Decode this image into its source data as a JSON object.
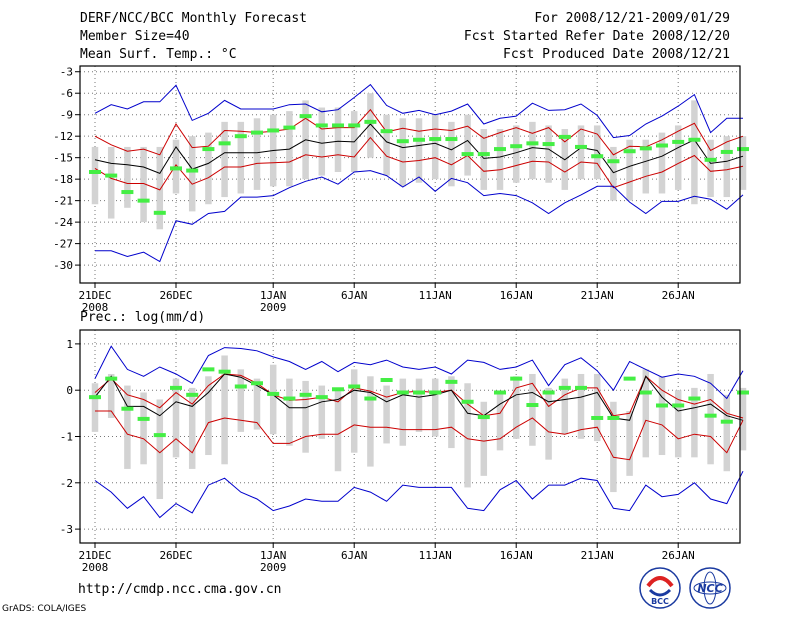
{
  "header": {
    "title": "DERF/NCC/BCC Monthly Forecast",
    "member_size": "Member Size=40",
    "variable1": "Mean Surf. Temp.: °C",
    "forecast_period": "For 2008/12/21-2009/01/29",
    "started_refer": "Fcst Started Refer Date 2008/12/20",
    "produced": "Fcst Produced Date 2008/12/21"
  },
  "footer": {
    "url": "http://cmdp.ncc.cma.gov.cn",
    "grads": "GrADS: COLA/IGES",
    "logo_bcc": "BCC",
    "logo_ncc": "NCC"
  },
  "colors": {
    "max_min": "#0000cc",
    "spread": "#cc0000",
    "mean": "#000000",
    "box": "#d3d3d3",
    "member": "#44ee44"
  },
  "chart_data": [
    {
      "type": "line",
      "title": "Mean Surf. Temp.: °C",
      "ylim": [
        -32.5,
        -2.2
      ],
      "yticks": [
        -3,
        -6,
        -9,
        -12,
        -15,
        -18,
        -21,
        -24,
        -27,
        -30
      ],
      "ytick_labels": [
        "-3",
        "-6",
        "-9",
        "-12",
        "-15",
        "-18",
        "-21",
        "-24",
        "-27",
        "-30"
      ],
      "x_tick_days": [
        1,
        6,
        12,
        17,
        22,
        27,
        32,
        37
      ],
      "x_tick_labels": [
        "21DEC",
        "26DEC",
        "1JAN",
        "6JAN",
        "11JAN",
        "16JAN",
        "21JAN",
        "26JAN"
      ],
      "x_year_labels": [
        {
          "day": 1,
          "label": "2008"
        },
        {
          "day": 12,
          "label": "2009"
        }
      ],
      "series": [
        {
          "name": "max",
          "values": [
            -8.8,
            -7.6,
            -8.2,
            -7.2,
            -7.2,
            -4.9,
            -9.8,
            -8.8,
            -7.0,
            -8.2,
            -8.2,
            -8.2,
            -7.6,
            -7.5,
            -8.6,
            -8.3,
            -6.6,
            -4.8,
            -7.7,
            -8.8,
            -8.4,
            -9.0,
            -8.5,
            -7.5,
            -10.3,
            -9.5,
            -9.2,
            -7.4,
            -8.4,
            -8.3,
            -7.5,
            -9.1,
            -12.2,
            -11.9,
            -10.3,
            -9.2,
            -7.8,
            -6.2,
            -11.5,
            -9.5,
            -9.5
          ]
        },
        {
          "name": "upper",
          "values": [
            -12.0,
            -13.2,
            -14.1,
            -13.8,
            -14.6,
            -10.3,
            -13.6,
            -13.4,
            -11.2,
            -11.3,
            -11.5,
            -11.3,
            -11.0,
            -9.5,
            -11.0,
            -10.8,
            -10.8,
            -8.3,
            -11.4,
            -10.9,
            -11.3,
            -11.0,
            -11.2,
            -10.6,
            -12.3,
            -11.5,
            -10.8,
            -11.6,
            -10.8,
            -12.8,
            -11.0,
            -11.7,
            -14.6,
            -13.4,
            -13.5,
            -12.5,
            -11.3,
            -10.2,
            -14.0,
            -12.8,
            -12.0
          ]
        },
        {
          "name": "mean",
          "values": [
            -15.3,
            -15.8,
            -16.0,
            -16.3,
            -17.2,
            -13.5,
            -16.6,
            -15.8,
            -14.3,
            -14.3,
            -14.3,
            -14.0,
            -13.8,
            -12.5,
            -13.0,
            -12.7,
            -12.8,
            -10.3,
            -12.8,
            -13.6,
            -13.3,
            -13.0,
            -13.9,
            -12.6,
            -15.1,
            -14.9,
            -14.3,
            -13.6,
            -13.8,
            -15.3,
            -13.6,
            -14.0,
            -17.1,
            -16.2,
            -15.5,
            -14.8,
            -13.6,
            -12.5,
            -15.8,
            -15.5,
            -14.8
          ]
        },
        {
          "name": "lower",
          "values": [
            -16.5,
            -17.9,
            -18.6,
            -18.6,
            -19.5,
            -16.0,
            -18.7,
            -17.8,
            -16.3,
            -16.3,
            -15.8,
            -15.7,
            -15.6,
            -14.6,
            -14.9,
            -14.6,
            -14.9,
            -12.2,
            -14.8,
            -15.6,
            -15.4,
            -15.0,
            -16.0,
            -14.7,
            -16.9,
            -16.7,
            -16.1,
            -15.5,
            -15.6,
            -17.0,
            -15.6,
            -15.8,
            -19.2,
            -18.4,
            -17.6,
            -17.0,
            -15.8,
            -14.7,
            -16.9,
            -16.7,
            -16.2
          ]
        },
        {
          "name": "min",
          "values": [
            -28.0,
            -28.0,
            -28.8,
            -28.2,
            -29.5,
            -23.8,
            -24.3,
            -22.8,
            -22.5,
            -20.5,
            -20.5,
            -20.3,
            -19.2,
            -18.3,
            -17.7,
            -18.7,
            -17.0,
            -16.8,
            -17.5,
            -19.1,
            -17.7,
            -19.7,
            -17.9,
            -18.5,
            -20.3,
            -20.0,
            -20.3,
            -21.3,
            -22.8,
            -21.3,
            -20.2,
            -19.0,
            -19.0,
            -21.2,
            -22.8,
            -21.1,
            -21.1,
            -20.4,
            -20.8,
            -22.2,
            -20.2
          ]
        }
      ],
      "boxes": {
        "low": [
          -21.5,
          -23.5,
          -22.0,
          -24.0,
          -25.0,
          -20.0,
          -22.5,
          -21.5,
          -20.5,
          -20.0,
          -19.5,
          -19.0,
          -19.0,
          -18.0,
          -17.5,
          -17.0,
          -17.0,
          -15.0,
          -17.5,
          -19.0,
          -18.5,
          -18.0,
          -19.0,
          -17.5,
          -19.5,
          -19.5,
          -18.5,
          -18.0,
          -18.5,
          -19.5,
          -18.0,
          -18.0,
          -21.0,
          -21.0,
          -20.0,
          -20.0,
          -19.5,
          -21.5,
          -20.5,
          -20.5,
          -19.5
        ],
        "high": [
          -13.5,
          -13.5,
          -13.5,
          -13.5,
          -13.5,
          -12.5,
          -12.0,
          -11.5,
          -10.0,
          -10.0,
          -9.5,
          -9.0,
          -8.5,
          -7.0,
          -8.0,
          -8.0,
          -8.5,
          -6.0,
          -9.0,
          -9.5,
          -9.5,
          -9.0,
          -10.0,
          -9.0,
          -11.0,
          -11.0,
          -10.5,
          -10.0,
          -10.5,
          -11.0,
          -10.5,
          -10.5,
          -13.5,
          -12.5,
          -12.5,
          -11.5,
          -10.5,
          -7.0,
          -12.5,
          -12.0,
          -12.0
        ]
      },
      "dashes": [
        -17.0,
        -17.5,
        -19.8,
        -21.0,
        -22.7,
        -16.5,
        -16.8,
        -13.8,
        -13.0,
        -12.0,
        -11.5,
        -11.2,
        -10.8,
        -9.2,
        -10.5,
        -10.5,
        -10.5,
        -10.0,
        -11.3,
        -12.7,
        -12.5,
        -12.4,
        -12.4,
        -14.5,
        -14.5,
        -13.8,
        -13.4,
        -13.0,
        -13.1,
        -12.1,
        -13.5,
        -14.8,
        -15.5,
        -14.1,
        -13.7,
        -13.3,
        -12.8,
        -12.5,
        -15.3,
        -14.2,
        -13.8
      ]
    },
    {
      "type": "line",
      "title": "Prec.: log(mm/d)",
      "ylim": [
        -3.3,
        1.3
      ],
      "yticks": [
        1,
        0,
        -1,
        -2,
        -3
      ],
      "ytick_labels": [
        "1",
        "0",
        "-1",
        "-2",
        "-3"
      ],
      "x_tick_days": [
        1,
        6,
        12,
        17,
        22,
        27,
        32,
        37
      ],
      "x_tick_labels": [
        "21DEC",
        "26DEC",
        "1JAN",
        "6JAN",
        "11JAN",
        "16JAN",
        "21JAN",
        "26JAN"
      ],
      "x_year_labels": [
        {
          "day": 1,
          "label": "2008"
        },
        {
          "day": 12,
          "label": "2009"
        }
      ],
      "series": [
        {
          "name": "max",
          "values": [
            0.25,
            0.95,
            0.45,
            0.3,
            0.5,
            0.35,
            0.15,
            0.75,
            0.92,
            0.9,
            0.85,
            0.72,
            0.62,
            0.45,
            0.62,
            0.4,
            0.6,
            0.55,
            0.65,
            0.5,
            0.45,
            0.5,
            0.35,
            0.65,
            0.6,
            0.45,
            0.5,
            0.65,
            0.1,
            0.55,
            0.7,
            0.42,
            0.0,
            0.62,
            0.45,
            0.28,
            0.35,
            0.3,
            0.15,
            -0.18,
            0.42
          ]
        },
        {
          "name": "upper",
          "values": [
            -0.05,
            0.25,
            -0.1,
            -0.2,
            -0.38,
            -0.05,
            -0.3,
            0.1,
            0.35,
            0.32,
            0.15,
            -0.1,
            -0.22,
            -0.2,
            -0.15,
            -0.25,
            0.05,
            -0.02,
            -0.15,
            -0.05,
            -0.02,
            -0.05,
            0.0,
            -0.3,
            -0.55,
            -0.5,
            0.05,
            0.15,
            -0.35,
            -0.1,
            0.05,
            0.05,
            -0.55,
            -0.5,
            0.3,
            0.0,
            -0.2,
            -0.3,
            -0.2,
            -0.5,
            -0.6
          ]
        },
        {
          "name": "mean",
          "values": [
            -0.15,
            0.3,
            -0.35,
            -0.35,
            -0.55,
            -0.25,
            -0.35,
            -0.05,
            0.35,
            0.28,
            0.1,
            -0.1,
            -0.38,
            -0.38,
            -0.25,
            -0.2,
            0.0,
            -0.05,
            -0.25,
            -0.1,
            -0.15,
            -0.1,
            0.0,
            -0.5,
            -0.55,
            -0.3,
            -0.1,
            -0.05,
            -0.25,
            -0.2,
            -0.15,
            -0.05,
            -0.6,
            -0.65,
            0.3,
            -0.15,
            -0.45,
            -0.38,
            -0.3,
            -0.55,
            -0.65
          ]
        },
        {
          "name": "lower",
          "values": [
            -0.45,
            -0.45,
            -0.95,
            -1.05,
            -1.35,
            -1.05,
            -1.35,
            -0.7,
            -0.6,
            -0.65,
            -0.7,
            -1.15,
            -1.15,
            -1.0,
            -0.95,
            -0.95,
            -0.75,
            -0.8,
            -0.8,
            -0.85,
            -0.85,
            -0.85,
            -0.8,
            -1.05,
            -1.1,
            -1.05,
            -0.8,
            -0.6,
            -0.9,
            -0.95,
            -0.85,
            -0.8,
            -1.45,
            -1.5,
            -0.65,
            -0.75,
            -1.05,
            -0.95,
            -1.0,
            -1.35,
            -0.65
          ]
        },
        {
          "name": "min",
          "values": [
            -1.95,
            -2.2,
            -2.55,
            -2.3,
            -2.75,
            -2.45,
            -2.65,
            -2.05,
            -1.9,
            -2.2,
            -2.35,
            -2.6,
            -2.5,
            -2.35,
            -2.4,
            -2.4,
            -2.1,
            -2.2,
            -2.4,
            -2.05,
            -2.1,
            -2.1,
            -2.1,
            -2.55,
            -2.6,
            -2.15,
            -1.95,
            -2.35,
            -2.05,
            -2.05,
            -1.9,
            -1.95,
            -2.55,
            -2.6,
            -2.05,
            -2.3,
            -2.25,
            -2.0,
            -2.35,
            -2.45,
            -1.75
          ]
        }
      ],
      "boxes": {
        "low": [
          -0.9,
          -0.6,
          -1.7,
          -1.6,
          -2.35,
          -1.45,
          -1.7,
          -1.4,
          -1.6,
          -0.9,
          -0.85,
          -0.95,
          -1.2,
          -1.35,
          -1.05,
          -1.75,
          -1.35,
          -1.65,
          -1.15,
          -1.2,
          -0.9,
          -1.0,
          -1.25,
          -2.1,
          -1.85,
          -1.3,
          -1.05,
          -1.2,
          -1.5,
          -0.95,
          -1.05,
          -1.1,
          -2.2,
          -1.85,
          -1.45,
          -1.4,
          -1.45,
          -1.45,
          -1.6,
          -1.75,
          -1.3
        ],
        "high": [
          0.15,
          0.35,
          0.1,
          -0.05,
          -0.2,
          0.25,
          0.05,
          0.3,
          0.75,
          0.45,
          0.25,
          0.55,
          0.25,
          0.2,
          0.1,
          0.05,
          0.45,
          0.3,
          0.1,
          0.25,
          0.25,
          0.25,
          0.3,
          0.15,
          -0.25,
          -0.05,
          0.3,
          0.35,
          0.05,
          0.25,
          0.35,
          0.35,
          -0.25,
          -0.45,
          0.45,
          0.3,
          0.0,
          0.05,
          0.35,
          -0.1,
          0.05
        ]
      },
      "dashes": [
        -0.15,
        0.25,
        -0.4,
        -0.62,
        -0.97,
        0.05,
        -0.1,
        0.45,
        0.4,
        0.08,
        0.15,
        -0.08,
        -0.18,
        -0.1,
        -0.15,
        0.02,
        0.08,
        -0.18,
        0.22,
        -0.05,
        -0.05,
        -0.05,
        0.18,
        -0.25,
        -0.58,
        -0.05,
        0.25,
        -0.32,
        -0.05,
        0.05,
        0.05,
        -0.6,
        -0.6,
        0.25,
        -0.05,
        -0.33,
        -0.33,
        -0.18,
        -0.55,
        -0.68,
        -0.05
      ]
    }
  ]
}
